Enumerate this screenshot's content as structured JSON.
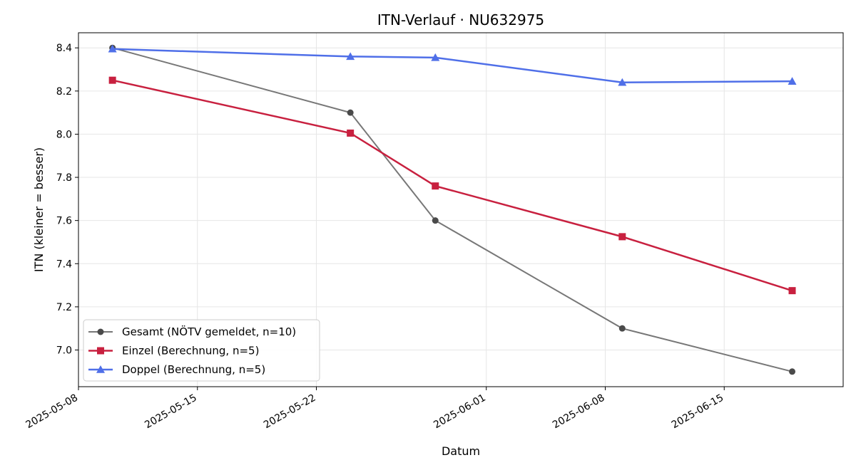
{
  "chart_data": {
    "type": "line",
    "title": "ITN-Verlauf · NU632975",
    "xlabel": "Datum",
    "ylabel": "ITN  (kleiner = besser)",
    "x_axis_type": "date",
    "xlim": [
      "2025-05-08",
      "2025-06-22"
    ],
    "ylim": [
      6.83,
      8.47
    ],
    "x_ticks": [
      "2025-05-08",
      "2025-05-15",
      "2025-05-22",
      "2025-06-01",
      "2025-06-08",
      "2025-06-15"
    ],
    "y_ticks": [
      7.0,
      7.2,
      7.4,
      7.6,
      7.8,
      8.0,
      8.2,
      8.4
    ],
    "y_tick_labels": [
      "7.0",
      "7.2",
      "7.4",
      "7.6",
      "7.8",
      "8.0",
      "8.2",
      "8.4"
    ],
    "grid": true,
    "legend_position": "lower-left",
    "series": [
      {
        "name": "Gesamt (NÖTV gemeldet, n=10)",
        "color": "#555555",
        "marker": "circle",
        "points": [
          {
            "x": "2025-05-10",
            "y": 8.4
          },
          {
            "x": "2025-05-24",
            "y": 8.1
          },
          {
            "x": "2025-05-29",
            "y": 7.6
          },
          {
            "x": "2025-06-09",
            "y": 7.1
          },
          {
            "x": "2025-06-19",
            "y": 6.9
          }
        ]
      },
      {
        "name": "Einzel (Berechnung, n=5)",
        "color": "#c8203f",
        "marker": "square",
        "points": [
          {
            "x": "2025-05-10",
            "y": 8.25
          },
          {
            "x": "2025-05-24",
            "y": 8.005
          },
          {
            "x": "2025-05-29",
            "y": 7.76
          },
          {
            "x": "2025-06-09",
            "y": 7.525
          },
          {
            "x": "2025-06-19",
            "y": 7.275
          }
        ]
      },
      {
        "name": "Doppel (Berechnung, n=5)",
        "color": "#4f6fe8",
        "marker": "triangle",
        "points": [
          {
            "x": "2025-05-10",
            "y": 8.395
          },
          {
            "x": "2025-05-24",
            "y": 8.36
          },
          {
            "x": "2025-05-29",
            "y": 8.355
          },
          {
            "x": "2025-06-09",
            "y": 8.24
          },
          {
            "x": "2025-06-19",
            "y": 8.245
          }
        ]
      }
    ]
  }
}
